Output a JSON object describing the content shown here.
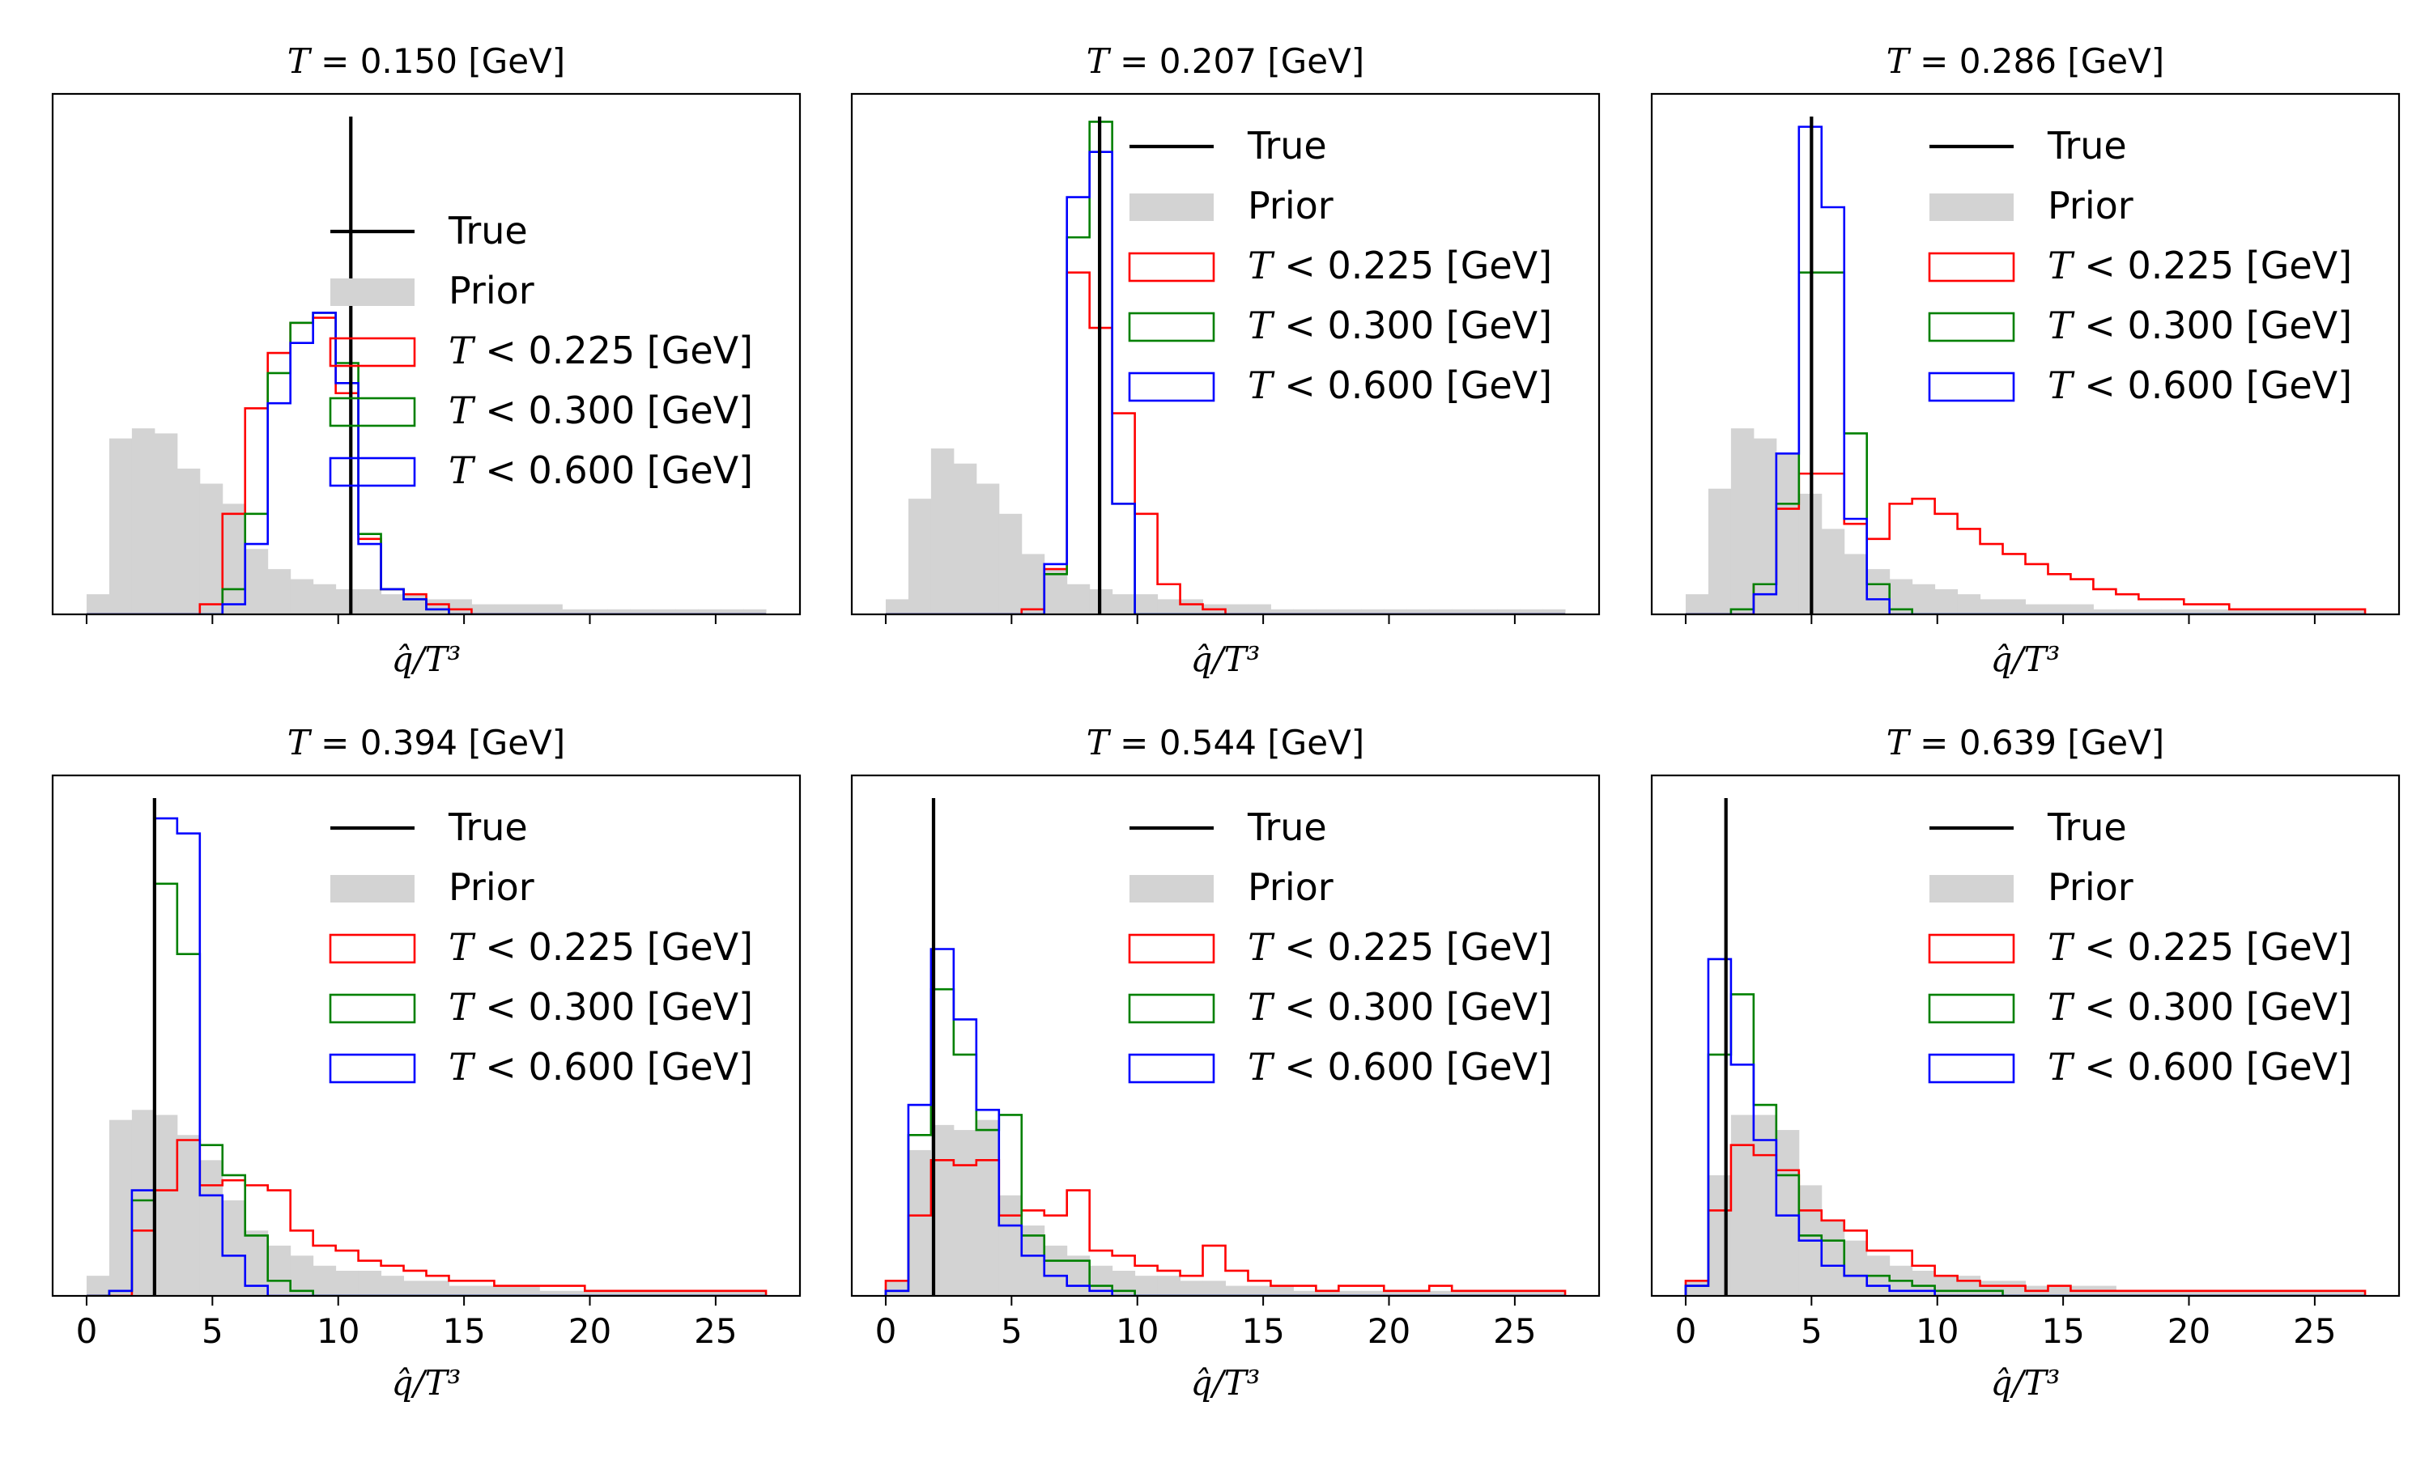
{
  "legend_labels": {
    "true": "True",
    "prior": "Prior",
    "t225": "T < 0.225 [GeV]",
    "t300": "T < 0.300 [GeV]",
    "t600": "T < 0.600 [GeV]"
  },
  "colors": {
    "true": "#000000",
    "prior": "#d3d3d3",
    "t225": "#ff0000",
    "t300": "#008000",
    "t600": "#0000ff"
  },
  "chart_data": [
    {
      "type": "histogram",
      "title": "T = 0.150 [GeV]",
      "xlabel": "q̂/T³",
      "xlim": [
        -1.35,
        28.35
      ],
      "xticks": [
        0,
        5,
        10,
        15,
        20,
        25
      ],
      "show_tick_labels": false,
      "legend_position": "center",
      "ymax": 1.0,
      "bin_edges": [
        0,
        0.9,
        1.8,
        2.7,
        3.6,
        4.5,
        5.4,
        6.3,
        7.2,
        8.1,
        9,
        9.9,
        10.8,
        11.7,
        12.6,
        13.5,
        14.4,
        15.3,
        16.2,
        17.1,
        18,
        18.9,
        19.8,
        20.7,
        21.6,
        22.5,
        23.4,
        24.3,
        25.2,
        26.1,
        27
      ],
      "true_value": 10.5,
      "prior": [
        0.04,
        0.35,
        0.37,
        0.36,
        0.29,
        0.26,
        0.22,
        0.13,
        0.09,
        0.07,
        0.06,
        0.05,
        0.05,
        0.04,
        0.04,
        0.03,
        0.03,
        0.02,
        0.02,
        0.02,
        0.02,
        0.01,
        0.01,
        0.01,
        0.01,
        0.01,
        0.01,
        0.01,
        0.01,
        0.01
      ],
      "series": [
        {
          "name": "T < 0.225 [GeV]",
          "values": [
            0,
            0,
            0,
            0,
            0,
            0.02,
            0.2,
            0.41,
            0.52,
            0.58,
            0.59,
            0.44,
            0.15,
            0.05,
            0.04,
            0.02,
            0.01,
            0,
            0,
            0,
            0,
            0,
            0,
            0,
            0,
            0,
            0,
            0,
            0,
            0
          ]
        },
        {
          "name": "T < 0.300 [GeV]",
          "values": [
            0,
            0,
            0,
            0,
            0,
            0,
            0.05,
            0.2,
            0.48,
            0.58,
            0.6,
            0.5,
            0.16,
            0.05,
            0.03,
            0.01,
            0,
            0,
            0,
            0,
            0,
            0,
            0,
            0,
            0,
            0,
            0,
            0,
            0,
            0
          ]
        },
        {
          "name": "T < 0.600 [GeV]",
          "values": [
            0,
            0,
            0,
            0,
            0,
            0,
            0.02,
            0.14,
            0.42,
            0.54,
            0.6,
            0.46,
            0.14,
            0.05,
            0.03,
            0.01,
            0,
            0,
            0,
            0,
            0,
            0,
            0,
            0,
            0,
            0,
            0,
            0,
            0,
            0
          ]
        }
      ]
    },
    {
      "type": "histogram",
      "title": "T = 0.207 [GeV]",
      "xlabel": "q̂/T³",
      "xlim": [
        -1.35,
        28.35
      ],
      "xticks": [
        0,
        5,
        10,
        15,
        20,
        25
      ],
      "show_tick_labels": false,
      "legend_position": "upper right",
      "ymax": 1.0,
      "bin_edges": [
        0,
        0.9,
        1.8,
        2.7,
        3.6,
        4.5,
        5.4,
        6.3,
        7.2,
        8.1,
        9,
        9.9,
        10.8,
        11.7,
        12.6,
        13.5,
        14.4,
        15.3,
        16.2,
        17.1,
        18,
        18.9,
        19.8,
        20.7,
        21.6,
        22.5,
        23.4,
        24.3,
        25.2,
        26.1,
        27
      ],
      "true_value": 8.5,
      "prior": [
        0.03,
        0.23,
        0.33,
        0.3,
        0.26,
        0.2,
        0.12,
        0.09,
        0.06,
        0.05,
        0.04,
        0.04,
        0.03,
        0.03,
        0.02,
        0.02,
        0.02,
        0.01,
        0.01,
        0.01,
        0.01,
        0.01,
        0.01,
        0.01,
        0.01,
        0.01,
        0.01,
        0.01,
        0.01,
        0.01
      ],
      "series": [
        {
          "name": "T < 0.225 [GeV]",
          "values": [
            0,
            0,
            0,
            0,
            0,
            0,
            0.01,
            0.09,
            0.68,
            0.57,
            0.4,
            0.2,
            0.06,
            0.02,
            0.01,
            0,
            0,
            0,
            0,
            0,
            0,
            0,
            0,
            0,
            0,
            0,
            0,
            0,
            0,
            0
          ]
        },
        {
          "name": "T < 0.300 [GeV]",
          "values": [
            0,
            0,
            0,
            0,
            0,
            0,
            0,
            0.08,
            0.75,
            0.98,
            0.22,
            0,
            0,
            0,
            0,
            0,
            0,
            0,
            0,
            0,
            0,
            0,
            0,
            0,
            0,
            0,
            0,
            0,
            0,
            0
          ]
        },
        {
          "name": "T < 0.600 [GeV]",
          "values": [
            0,
            0,
            0,
            0,
            0,
            0,
            0,
            0.1,
            0.83,
            0.92,
            0.22,
            0,
            0,
            0,
            0,
            0,
            0,
            0,
            0,
            0,
            0,
            0,
            0,
            0,
            0,
            0,
            0,
            0,
            0,
            0
          ]
        }
      ]
    },
    {
      "type": "histogram",
      "title": "T = 0.286 [GeV]",
      "xlabel": "q̂/T³",
      "xlim": [
        -1.35,
        28.35
      ],
      "xticks": [
        0,
        5,
        10,
        15,
        20,
        25
      ],
      "show_tick_labels": false,
      "legend_position": "upper right",
      "ymax": 1.0,
      "bin_edges": [
        0,
        0.9,
        1.8,
        2.7,
        3.6,
        4.5,
        5.4,
        6.3,
        7.2,
        8.1,
        9,
        9.9,
        10.8,
        11.7,
        12.6,
        13.5,
        14.4,
        15.3,
        16.2,
        17.1,
        18,
        18.9,
        19.8,
        20.7,
        21.6,
        22.5,
        23.4,
        24.3,
        25.2,
        26.1,
        27
      ],
      "true_value": 5.0,
      "prior": [
        0.04,
        0.25,
        0.37,
        0.35,
        0.32,
        0.24,
        0.17,
        0.12,
        0.09,
        0.07,
        0.06,
        0.05,
        0.04,
        0.03,
        0.03,
        0.02,
        0.02,
        0.02,
        0.01,
        0.01,
        0.01,
        0.01,
        0.01,
        0.01,
        0.01,
        0.01,
        0.01,
        0.01,
        0.01,
        0.01
      ],
      "series": [
        {
          "name": "T < 0.225 [GeV]",
          "values": [
            0,
            0,
            0,
            0.06,
            0.21,
            0.28,
            0.28,
            0.18,
            0.15,
            0.22,
            0.23,
            0.2,
            0.17,
            0.14,
            0.12,
            0.1,
            0.08,
            0.07,
            0.05,
            0.04,
            0.03,
            0.03,
            0.02,
            0.02,
            0.01,
            0.01,
            0.01,
            0.01,
            0.01,
            0.01
          ]
        },
        {
          "name": "T < 0.300 [GeV]",
          "values": [
            0,
            0,
            0.01,
            0.06,
            0.22,
            0.68,
            0.68,
            0.36,
            0.06,
            0.01,
            0,
            0,
            0,
            0,
            0,
            0,
            0,
            0,
            0,
            0,
            0,
            0,
            0,
            0,
            0,
            0,
            0,
            0,
            0,
            0
          ]
        },
        {
          "name": "T < 0.600 [GeV]",
          "values": [
            0,
            0,
            0,
            0.04,
            0.32,
            0.97,
            0.81,
            0.19,
            0.03,
            0,
            0,
            0,
            0,
            0,
            0,
            0,
            0,
            0,
            0,
            0,
            0,
            0,
            0,
            0,
            0,
            0,
            0,
            0,
            0,
            0
          ]
        }
      ]
    },
    {
      "type": "histogram",
      "title": "T = 0.394 [GeV]",
      "xlabel": "q̂/T³",
      "xlim": [
        -1.35,
        28.35
      ],
      "xticks": [
        0,
        5,
        10,
        15,
        20,
        25
      ],
      "show_tick_labels": true,
      "legend_position": "upper right",
      "ymax": 1.0,
      "bin_edges": [
        0,
        0.9,
        1.8,
        2.7,
        3.6,
        4.5,
        5.4,
        6.3,
        7.2,
        8.1,
        9,
        9.9,
        10.8,
        11.7,
        12.6,
        13.5,
        14.4,
        15.3,
        16.2,
        17.1,
        18,
        18.9,
        19.8,
        20.7,
        21.6,
        22.5,
        23.4,
        24.3,
        25.2,
        26.1,
        27
      ],
      "true_value": 2.7,
      "prior": [
        0.04,
        0.35,
        0.37,
        0.36,
        0.32,
        0.27,
        0.19,
        0.13,
        0.1,
        0.08,
        0.06,
        0.05,
        0.05,
        0.04,
        0.03,
        0.03,
        0.02,
        0.02,
        0.02,
        0.02,
        0.01,
        0.01,
        0.01,
        0.01,
        0.01,
        0.01,
        0.01,
        0.01,
        0.01,
        0.01
      ],
      "series": [
        {
          "name": "T < 0.225 [GeV]",
          "values": [
            0,
            0,
            0.13,
            0.21,
            0.31,
            0.22,
            0.23,
            0.22,
            0.21,
            0.13,
            0.1,
            0.09,
            0.07,
            0.06,
            0.05,
            0.04,
            0.03,
            0.03,
            0.02,
            0.02,
            0.02,
            0.02,
            0.01,
            0.01,
            0.01,
            0.01,
            0.01,
            0.01,
            0.01,
            0.01
          ]
        },
        {
          "name": "T < 0.300 [GeV]",
          "values": [
            0,
            0.01,
            0.19,
            0.82,
            0.68,
            0.3,
            0.24,
            0.12,
            0.03,
            0.01,
            0,
            0,
            0,
            0,
            0,
            0,
            0,
            0,
            0,
            0,
            0,
            0,
            0,
            0,
            0,
            0,
            0,
            0,
            0,
            0
          ]
        },
        {
          "name": "T < 0.600 [GeV]",
          "values": [
            0,
            0.01,
            0.21,
            0.95,
            0.92,
            0.2,
            0.08,
            0.02,
            0,
            0,
            0,
            0,
            0,
            0,
            0,
            0,
            0,
            0,
            0,
            0,
            0,
            0,
            0,
            0,
            0,
            0,
            0,
            0,
            0,
            0
          ]
        }
      ]
    },
    {
      "type": "histogram",
      "title": "T = 0.544 [GeV]",
      "xlabel": "q̂/T³",
      "xlim": [
        -1.35,
        28.35
      ],
      "xticks": [
        0,
        5,
        10,
        15,
        20,
        25
      ],
      "show_tick_labels": true,
      "legend_position": "upper right",
      "ymax": 1.0,
      "bin_edges": [
        0,
        0.9,
        1.8,
        2.7,
        3.6,
        4.5,
        5.4,
        6.3,
        7.2,
        8.1,
        9,
        9.9,
        10.8,
        11.7,
        12.6,
        13.5,
        14.4,
        15.3,
        16.2,
        17.1,
        18,
        18.9,
        19.8,
        20.7,
        21.6,
        22.5,
        23.4,
        24.3,
        25.2,
        26.1,
        27
      ],
      "true_value": 1.9,
      "prior": [
        0.03,
        0.29,
        0.34,
        0.33,
        0.35,
        0.2,
        0.14,
        0.1,
        0.08,
        0.06,
        0.05,
        0.04,
        0.04,
        0.03,
        0.03,
        0.02,
        0.02,
        0.02,
        0.01,
        0.01,
        0.01,
        0.01,
        0.01,
        0.01,
        0.01,
        0.01,
        0.01,
        0.01,
        0.01,
        0.01
      ],
      "series": [
        {
          "name": "T < 0.225 [GeV]",
          "values": [
            0.03,
            0.16,
            0.27,
            0.26,
            0.27,
            0.16,
            0.17,
            0.16,
            0.21,
            0.09,
            0.08,
            0.06,
            0.05,
            0.04,
            0.1,
            0.05,
            0.03,
            0.02,
            0.02,
            0.01,
            0.02,
            0.02,
            0.01,
            0.01,
            0.02,
            0.01,
            0.01,
            0.01,
            0.01,
            0.01
          ]
        },
        {
          "name": "T < 0.300 [GeV]",
          "values": [
            0.01,
            0.32,
            0.61,
            0.48,
            0.33,
            0.36,
            0.12,
            0.07,
            0.07,
            0.02,
            0.01,
            0,
            0,
            0,
            0,
            0,
            0,
            0,
            0,
            0,
            0,
            0,
            0,
            0,
            0,
            0,
            0,
            0,
            0,
            0
          ]
        },
        {
          "name": "T < 0.600 [GeV]",
          "values": [
            0.01,
            0.38,
            0.69,
            0.55,
            0.37,
            0.14,
            0.08,
            0.04,
            0.02,
            0.01,
            0,
            0,
            0,
            0,
            0,
            0,
            0,
            0,
            0,
            0,
            0,
            0,
            0,
            0,
            0,
            0,
            0,
            0,
            0,
            0
          ]
        }
      ]
    },
    {
      "type": "histogram",
      "title": "T = 0.639 [GeV]",
      "xlabel": "q̂/T³",
      "xlim": [
        -1.35,
        28.35
      ],
      "xticks": [
        0,
        5,
        10,
        15,
        20,
        25
      ],
      "show_tick_labels": true,
      "legend_position": "upper right",
      "ymax": 1.0,
      "bin_edges": [
        0,
        0.9,
        1.8,
        2.7,
        3.6,
        4.5,
        5.4,
        6.3,
        7.2,
        8.1,
        9,
        9.9,
        10.8,
        11.7,
        12.6,
        13.5,
        14.4,
        15.3,
        16.2,
        17.1,
        18,
        18.9,
        19.8,
        20.7,
        21.6,
        22.5,
        23.4,
        24.3,
        25.2,
        26.1,
        27
      ],
      "true_value": 1.6,
      "prior": [
        0.03,
        0.24,
        0.36,
        0.36,
        0.33,
        0.22,
        0.15,
        0.11,
        0.08,
        0.06,
        0.05,
        0.04,
        0.04,
        0.03,
        0.03,
        0.02,
        0.02,
        0.02,
        0.02,
        0.01,
        0.01,
        0.01,
        0.01,
        0.01,
        0.01,
        0.01,
        0.01,
        0.01,
        0.01,
        0.01
      ],
      "series": [
        {
          "name": "T < 0.225 [GeV]",
          "values": [
            0.03,
            0.17,
            0.3,
            0.28,
            0.25,
            0.17,
            0.15,
            0.13,
            0.09,
            0.09,
            0.06,
            0.04,
            0.03,
            0.02,
            0.02,
            0.01,
            0.02,
            0.01,
            0.01,
            0.01,
            0.01,
            0.01,
            0.01,
            0.01,
            0.01,
            0.01,
            0.01,
            0.01,
            0.01,
            0.01
          ]
        },
        {
          "name": "T < 0.300 [GeV]",
          "values": [
            0.02,
            0.48,
            0.6,
            0.38,
            0.24,
            0.12,
            0.11,
            0.04,
            0.04,
            0.03,
            0.02,
            0.01,
            0.01,
            0.01,
            0,
            0,
            0,
            0,
            0,
            0,
            0,
            0,
            0,
            0,
            0,
            0,
            0,
            0,
            0,
            0
          ]
        },
        {
          "name": "T < 0.600 [GeV]",
          "values": [
            0.02,
            0.67,
            0.46,
            0.31,
            0.16,
            0.11,
            0.06,
            0.04,
            0.02,
            0.01,
            0.01,
            0,
            0,
            0,
            0,
            0,
            0,
            0,
            0,
            0,
            0,
            0,
            0,
            0,
            0,
            0,
            0,
            0,
            0,
            0
          ]
        }
      ]
    }
  ]
}
